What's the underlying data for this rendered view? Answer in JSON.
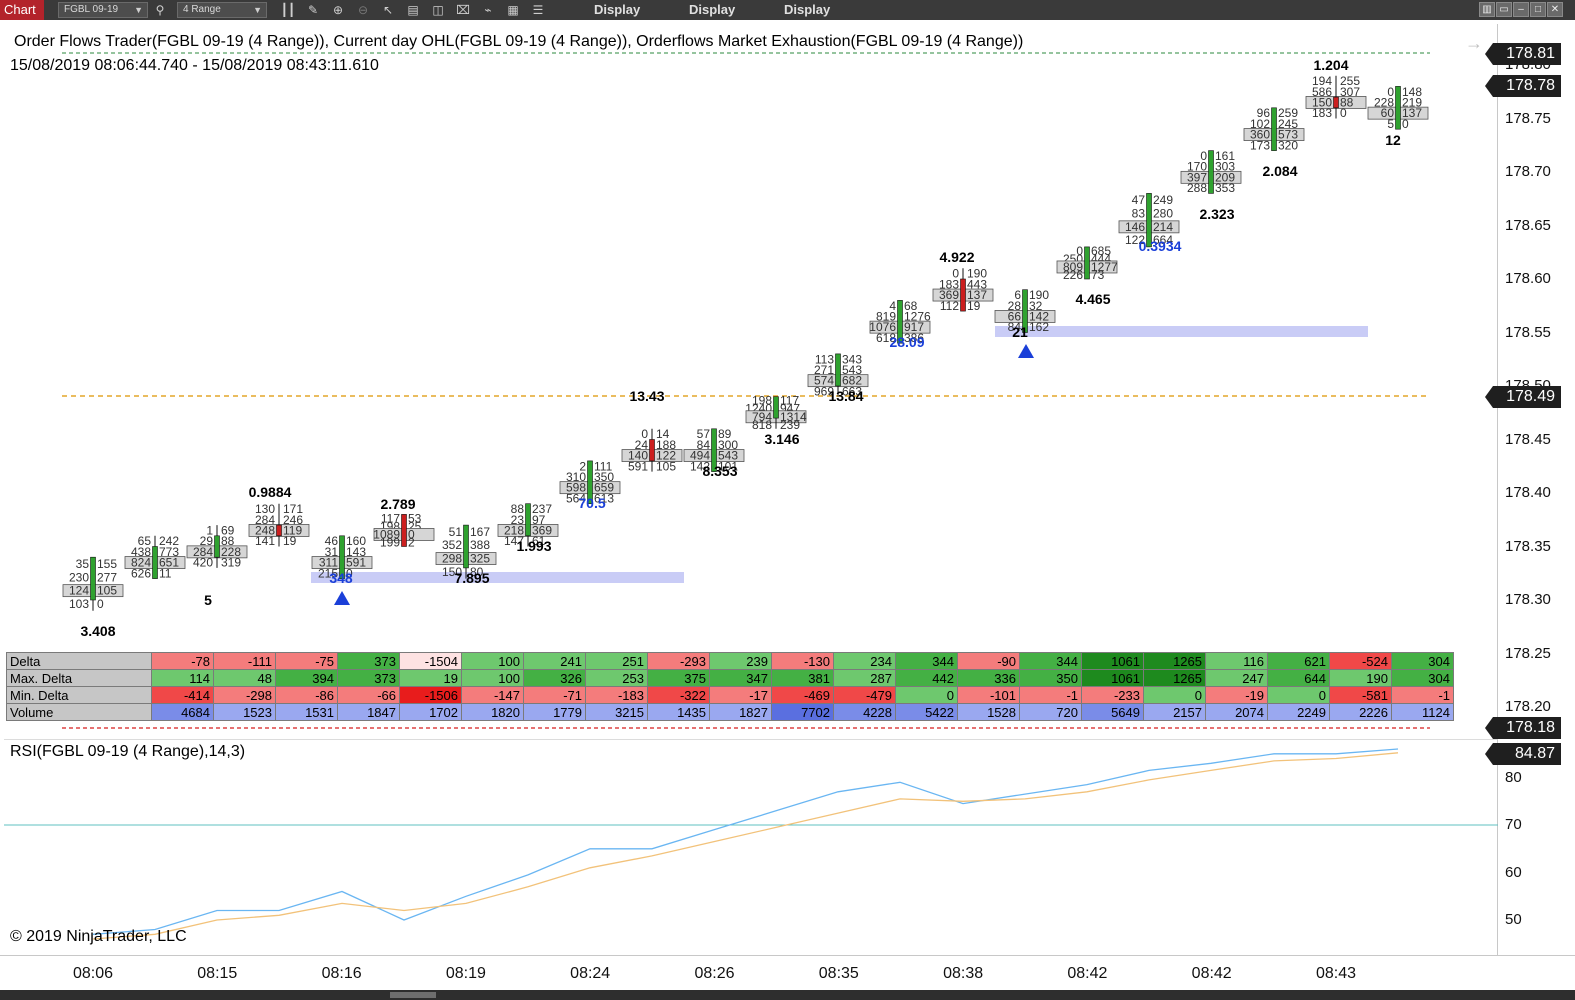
{
  "toolbar": {
    "chart_tab": "Chart",
    "instrument": "FGBL 09-19",
    "bar_type": "4 Range",
    "display_labels": [
      "Display",
      "Display",
      "Display"
    ]
  },
  "chart": {
    "title": "Order Flows Trader(FGBL 09-19 (4 Range)), Current day OHL(FGBL 09-19 (4 Range)),  Orderflows Market Exhaustion(FGBL 09-19 (4 Range))",
    "range": "15/08/2019 08:06:44.740 - 15/08/2019 08:43:11.610",
    "rsi_title": "RSI(FGBL 09-19 (4 Range),14,3)",
    "copyright": "© 2019 NinjaTrader, LLC",
    "price_ticks": [
      "178.80",
      "178.75",
      "178.70",
      "178.65",
      "178.60",
      "178.55",
      "178.50",
      "178.45",
      "178.40",
      "178.35",
      "178.30",
      "178.25",
      "178.20"
    ],
    "price_badges": [
      {
        "value": "178.81",
        "color": "#1f1f1f"
      },
      {
        "value": "178.78",
        "color": "#1f1f1f"
      },
      {
        "value": "178.49",
        "color": "#1f1f1f"
      },
      {
        "value": "178.18",
        "color": "#1f1f1f"
      }
    ],
    "rsi_ticks": [
      "80",
      "70",
      "60",
      "50"
    ],
    "rsi_badge": "84.87",
    "time_labels": [
      "08:06",
      "08:15",
      "08:16",
      "08:19",
      "08:24",
      "08:26",
      "08:35",
      "08:38",
      "08:42",
      "08:42",
      "08:43"
    ]
  },
  "bar_annotations": {
    "top_labels": [
      "0.9884",
      "2.789",
      "13.43",
      "4.922",
      "1.204"
    ],
    "bottom_labels_black": [
      "3.408",
      "5",
      "7.895",
      "1.993",
      "8.353",
      "3.146",
      "13.84",
      "21",
      "4.465",
      "2.323",
      "2.084",
      "12"
    ],
    "bottom_labels_blue": [
      "348",
      "70.5",
      "28.09",
      "0.3934"
    ],
    "bid_ask_samples": [
      [
        "35",
        "155"
      ],
      [
        "230",
        "277"
      ],
      [
        "124",
        "105"
      ],
      [
        "103",
        "0"
      ],
      [
        "65",
        "242"
      ],
      [
        "438",
        "773"
      ],
      [
        "824",
        "651"
      ],
      [
        "626",
        "11"
      ],
      [
        "1",
        "69"
      ],
      [
        "29",
        "88"
      ],
      [
        "284",
        "228"
      ],
      [
        "420",
        "319"
      ],
      [
        "130",
        "171"
      ],
      [
        "284",
        "246"
      ],
      [
        "248",
        "119"
      ],
      [
        "141",
        "19"
      ],
      [
        "46",
        "160"
      ],
      [
        "31",
        "143"
      ],
      [
        "311",
        "591"
      ],
      [
        "215",
        "0"
      ],
      [
        "117",
        "53"
      ],
      [
        "198",
        "25"
      ],
      [
        "1089",
        "0"
      ],
      [
        "199",
        "2"
      ],
      [
        "51",
        "167"
      ],
      [
        "352",
        "388"
      ],
      [
        "298",
        "325"
      ],
      [
        "150",
        "80"
      ],
      [
        "88",
        "237"
      ],
      [
        "23",
        "97"
      ],
      [
        "218",
        "369"
      ],
      [
        "147",
        "61"
      ],
      [
        "2",
        "111"
      ],
      [
        "310",
        "350"
      ],
      [
        "598",
        "659"
      ],
      [
        "564",
        "613"
      ],
      [
        "0",
        "14"
      ],
      [
        "24",
        "188"
      ],
      [
        "140",
        "122"
      ],
      [
        "591",
        "105"
      ],
      [
        "57",
        "89"
      ],
      [
        "84",
        "300"
      ],
      [
        "494",
        "543"
      ],
      [
        "142",
        "101"
      ],
      [
        "198",
        "117"
      ],
      [
        "1240",
        "947"
      ],
      [
        "794",
        "1314"
      ],
      [
        "818",
        "239"
      ],
      [
        "113",
        "343"
      ],
      [
        "271",
        "543"
      ],
      [
        "574",
        "682"
      ],
      [
        "969",
        "663"
      ],
      [
        "4",
        "68"
      ],
      [
        "819",
        "1276"
      ],
      [
        "1076",
        "917"
      ],
      [
        "618",
        "386"
      ],
      [
        "0",
        "190"
      ],
      [
        "183",
        "443"
      ],
      [
        "369",
        "137"
      ],
      [
        "112",
        "19"
      ],
      [
        "6",
        "190"
      ],
      [
        "28",
        "32"
      ],
      [
        "66",
        "142"
      ],
      [
        "84",
        "162"
      ],
      [
        "0",
        "685"
      ],
      [
        "250",
        "444"
      ],
      [
        "809",
        "1277"
      ],
      [
        "226",
        "73"
      ],
      [
        "47",
        "249"
      ],
      [
        "83",
        "280"
      ],
      [
        "146",
        "214"
      ],
      [
        "122",
        "664"
      ],
      [
        "0",
        "161"
      ],
      [
        "170",
        "303"
      ],
      [
        "397",
        "209"
      ],
      [
        "288",
        "353"
      ],
      [
        "96",
        "259"
      ],
      [
        "102",
        "245"
      ],
      [
        "360",
        "573"
      ],
      [
        "173",
        "320"
      ],
      [
        "194",
        "255"
      ],
      [
        "586",
        "307"
      ],
      [
        "150",
        "88"
      ],
      [
        "183",
        "0"
      ],
      [
        "0",
        "148"
      ],
      [
        "228",
        "219"
      ],
      [
        "60",
        "137"
      ],
      [
        "5",
        "0"
      ]
    ]
  },
  "stats": {
    "labels": [
      "Delta",
      "Max. Delta",
      "Min. Delta",
      "Volume"
    ],
    "delta": [
      "-78",
      "-111",
      "-75",
      "373",
      "-1504",
      "100",
      "241",
      "251",
      "-293",
      "239",
      "-130",
      "234",
      "344",
      "-90",
      "344",
      "1061",
      "1265",
      "116",
      "621",
      "-524",
      "304"
    ],
    "max_delta": [
      "114",
      "48",
      "394",
      "373",
      "19",
      "100",
      "326",
      "253",
      "375",
      "347",
      "381",
      "287",
      "442",
      "336",
      "350",
      "1061",
      "1265",
      "247",
      "644",
      "190",
      "304"
    ],
    "min_delta": [
      "-414",
      "-298",
      "-86",
      "-66",
      "-1506",
      "-147",
      "-71",
      "-183",
      "-322",
      "-17",
      "-469",
      "-479",
      "0",
      "-101",
      "-1",
      "-233",
      "0",
      "-19",
      "0",
      "-581",
      "-1"
    ],
    "volume": [
      "4684",
      "1523",
      "1531",
      "1847",
      "1702",
      "1820",
      "1779",
      "3215",
      "1435",
      "1827",
      "7702",
      "4228",
      "5422",
      "1528",
      "720",
      "5649",
      "2157",
      "2074",
      "2249",
      "2226",
      "1124"
    ]
  },
  "colors": {
    "bull": "#2fa22f",
    "bear": "#cc1f1f",
    "rsi_line": "#6ab6f2",
    "rsi_signal": "#f2c27a",
    "rsi_level": "#5fc0c0",
    "ohl_line": "#e3a628",
    "zone": "#c9ccf6"
  }
}
